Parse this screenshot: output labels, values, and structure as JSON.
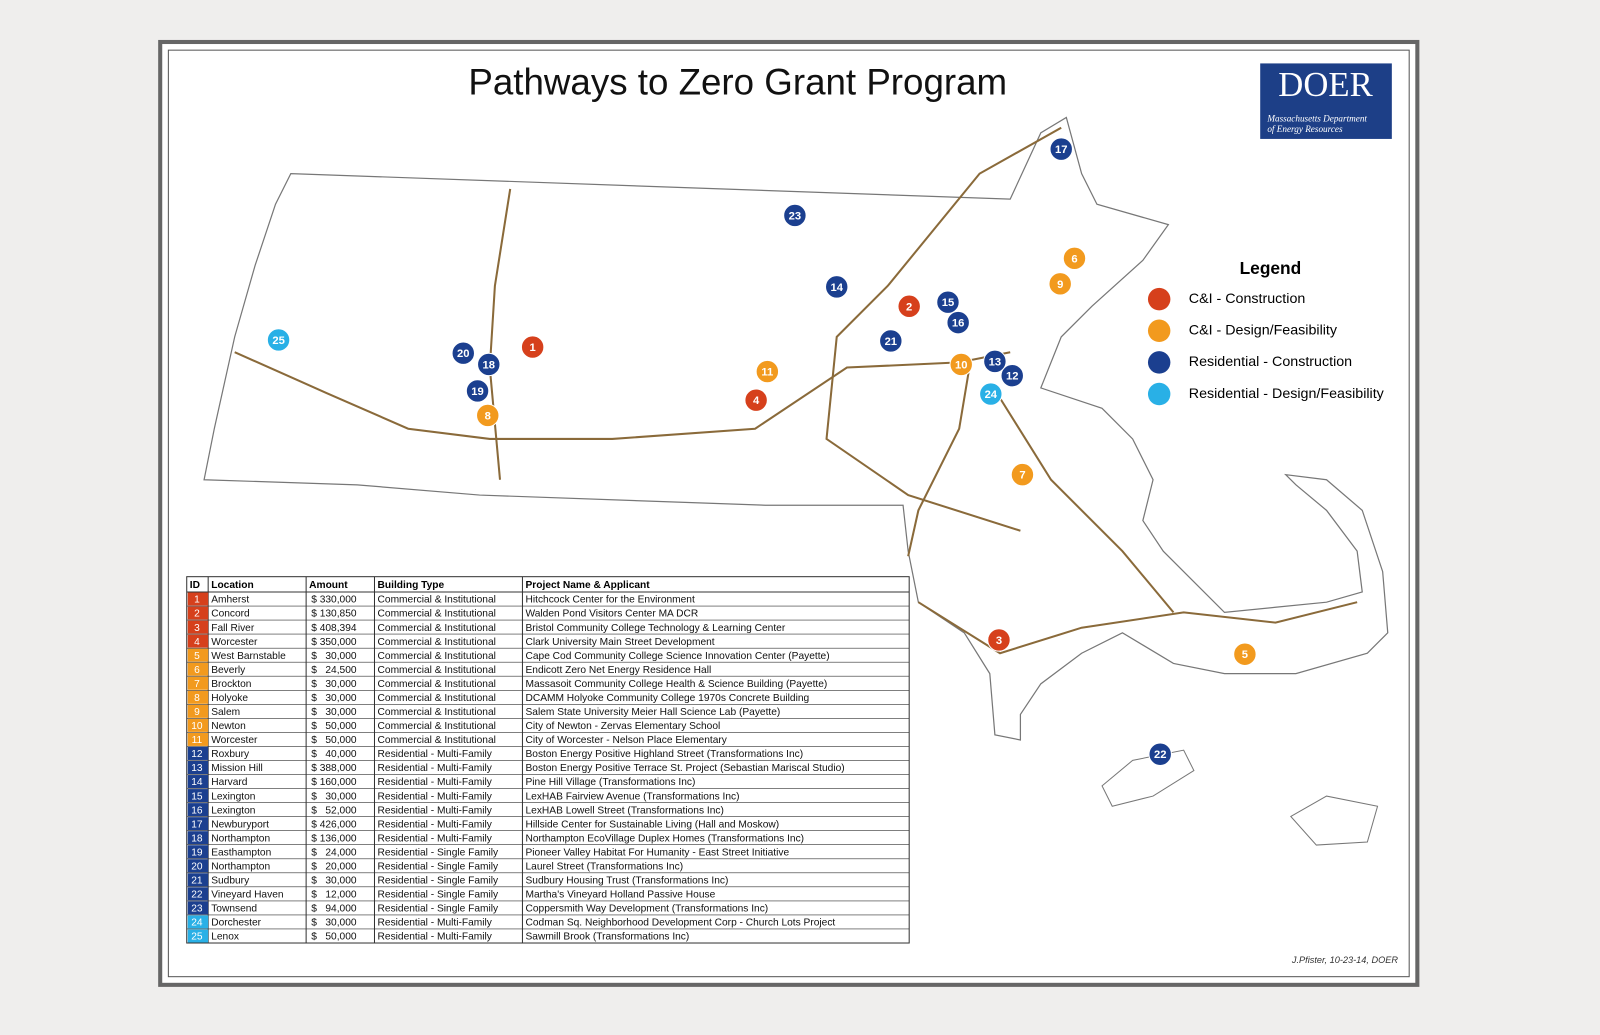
{
  "header": {
    "title": "Pathways to Zero Grant Program",
    "logo": {
      "name": "DOER",
      "line1": "Massachusetts Department",
      "line2": "of Energy Resources"
    }
  },
  "legend": {
    "title": "Legend",
    "items": [
      {
        "label": "C&I - Construction",
        "color": "#d6401c"
      },
      {
        "label": "C&I - Design/Feasibility",
        "color": "#f29a1e"
      },
      {
        "label": "Residential - Construction",
        "color": "#1b3f8f"
      },
      {
        "label": "Residential - Design/Feasibility",
        "color": "#29b0e6"
      }
    ]
  },
  "table": {
    "columns": [
      "ID",
      "Location",
      "Amount",
      "Building Type",
      "Project Name & Applicant"
    ],
    "rows": [
      {
        "id": 1,
        "location": "Amherst",
        "amount": "$ 330,000",
        "type": "Commercial & Institutional",
        "project": "Hitchcock Center for the Environment",
        "color": "#d6401c"
      },
      {
        "id": 2,
        "location": "Concord",
        "amount": "$ 130,850",
        "type": "Commercial & Institutional",
        "project": "Walden Pond Visitors Center MA DCR",
        "color": "#d6401c"
      },
      {
        "id": 3,
        "location": "Fall River",
        "amount": "$ 408,394",
        "type": "Commercial & Institutional",
        "project": "Bristol Community College Technology & Learning Center",
        "color": "#d6401c"
      },
      {
        "id": 4,
        "location": "Worcester",
        "amount": "$ 350,000",
        "type": "Commercial & Institutional",
        "project": "Clark University Main Street Development",
        "color": "#d6401c"
      },
      {
        "id": 5,
        "location": "West Barnstable",
        "amount": "$   30,000",
        "type": "Commercial & Institutional",
        "project": "Cape Cod Community College Science Innovation Center (Payette)",
        "color": "#f29a1e"
      },
      {
        "id": 6,
        "location": "Beverly",
        "amount": "$   24,500",
        "type": "Commercial & Institutional",
        "project": "Endicott Zero Net Energy Residence Hall",
        "color": "#f29a1e"
      },
      {
        "id": 7,
        "location": "Brockton",
        "amount": "$   30,000",
        "type": "Commercial & Institutional",
        "project": "Massasoit Community College Health & Science Building (Payette)",
        "color": "#f29a1e"
      },
      {
        "id": 8,
        "location": "Holyoke",
        "amount": "$   30,000",
        "type": "Commercial & Institutional",
        "project": "DCAMM Holyoke Community College 1970s Concrete Building",
        "color": "#f29a1e"
      },
      {
        "id": 9,
        "location": "Salem",
        "amount": "$   30,000",
        "type": "Commercial & Institutional",
        "project": "Salem State University Meier Hall Science Lab (Payette)",
        "color": "#f29a1e"
      },
      {
        "id": 10,
        "location": "Newton",
        "amount": "$   50,000",
        "type": "Commercial & Institutional",
        "project": "City of Newton - Zervas Elementary School",
        "color": "#f29a1e"
      },
      {
        "id": 11,
        "location": "Worcester",
        "amount": "$   50,000",
        "type": "Commercial & Institutional",
        "project": "City of Worcester - Nelson Place Elementary",
        "color": "#f29a1e"
      },
      {
        "id": 12,
        "location": "Roxbury",
        "amount": "$   40,000",
        "type": "Residential - Multi-Family",
        "project": "Boston Energy Positive Highland Street (Transformations Inc)",
        "color": "#1b3f8f"
      },
      {
        "id": 13,
        "location": "Mission Hill",
        "amount": "$ 388,000",
        "type": "Residential - Multi-Family",
        "project": "Boston Energy Positive Terrace St. Project (Sebastian Mariscal Studio)",
        "color": "#1b3f8f"
      },
      {
        "id": 14,
        "location": "Harvard",
        "amount": "$ 160,000",
        "type": "Residential - Multi-Family",
        "project": "Pine Hill Village (Transformations Inc)",
        "color": "#1b3f8f"
      },
      {
        "id": 15,
        "location": "Lexington",
        "amount": "$   30,000",
        "type": "Residential - Multi-Family",
        "project": "LexHAB Fairview Avenue (Transformations Inc)",
        "color": "#1b3f8f"
      },
      {
        "id": 16,
        "location": "Lexington",
        "amount": "$   52,000",
        "type": "Residential - Multi-Family",
        "project": "LexHAB Lowell Street (Transformations Inc)",
        "color": "#1b3f8f"
      },
      {
        "id": 17,
        "location": "Newburyport",
        "amount": "$ 426,000",
        "type": "Residential - Multi-Family",
        "project": "Hillside Center for Sustainable Living (Hall and Moskow)",
        "color": "#1b3f8f"
      },
      {
        "id": 18,
        "location": "Northampton",
        "amount": "$ 136,000",
        "type": "Residential - Multi-Family",
        "project": "Northampton EcoVillage Duplex Homes (Transformations Inc)",
        "color": "#1b3f8f"
      },
      {
        "id": 19,
        "location": "Easthampton",
        "amount": "$   24,000",
        "type": "Residential - Single Family",
        "project": "Pioneer Valley Habitat For Humanity - East Street Initiative",
        "color": "#1b3f8f"
      },
      {
        "id": 20,
        "location": "Northampton",
        "amount": "$   20,000",
        "type": "Residential - Single Family",
        "project": "Laurel Street (Transformations Inc)",
        "color": "#1b3f8f"
      },
      {
        "id": 21,
        "location": "Sudbury",
        "amount": "$   30,000",
        "type": "Residential - Single Family",
        "project": "Sudbury Housing Trust (Transformations Inc)",
        "color": "#1b3f8f"
      },
      {
        "id": 22,
        "location": "Vineyard Haven",
        "amount": "$   12,000",
        "type": "Residential - Single Family",
        "project": "Martha's Vineyard Holland Passive House",
        "color": "#1b3f8f"
      },
      {
        "id": 23,
        "location": "Townsend",
        "amount": "$   94,000",
        "type": "Residential - Single Family",
        "project": "Coppersmith Way Development (Transformations Inc)",
        "color": "#1b3f8f"
      },
      {
        "id": 24,
        "location": "Dorchester",
        "amount": "$   30,000",
        "type": "Residential - Multi-Family",
        "project": "Codman Sq. Neighborhood Development Corp - Church Lots Project",
        "color": "#29b0e6"
      },
      {
        "id": 25,
        "location": "Lenox",
        "amount": "$   50,000",
        "type": "Residential - Multi-Family",
        "project": "Sawmill Brook (Transformations Inc)",
        "color": "#29b0e6"
      }
    ]
  },
  "footer": {
    "credit": "J.Pfister, 10-23-14, DOER"
  }
}
